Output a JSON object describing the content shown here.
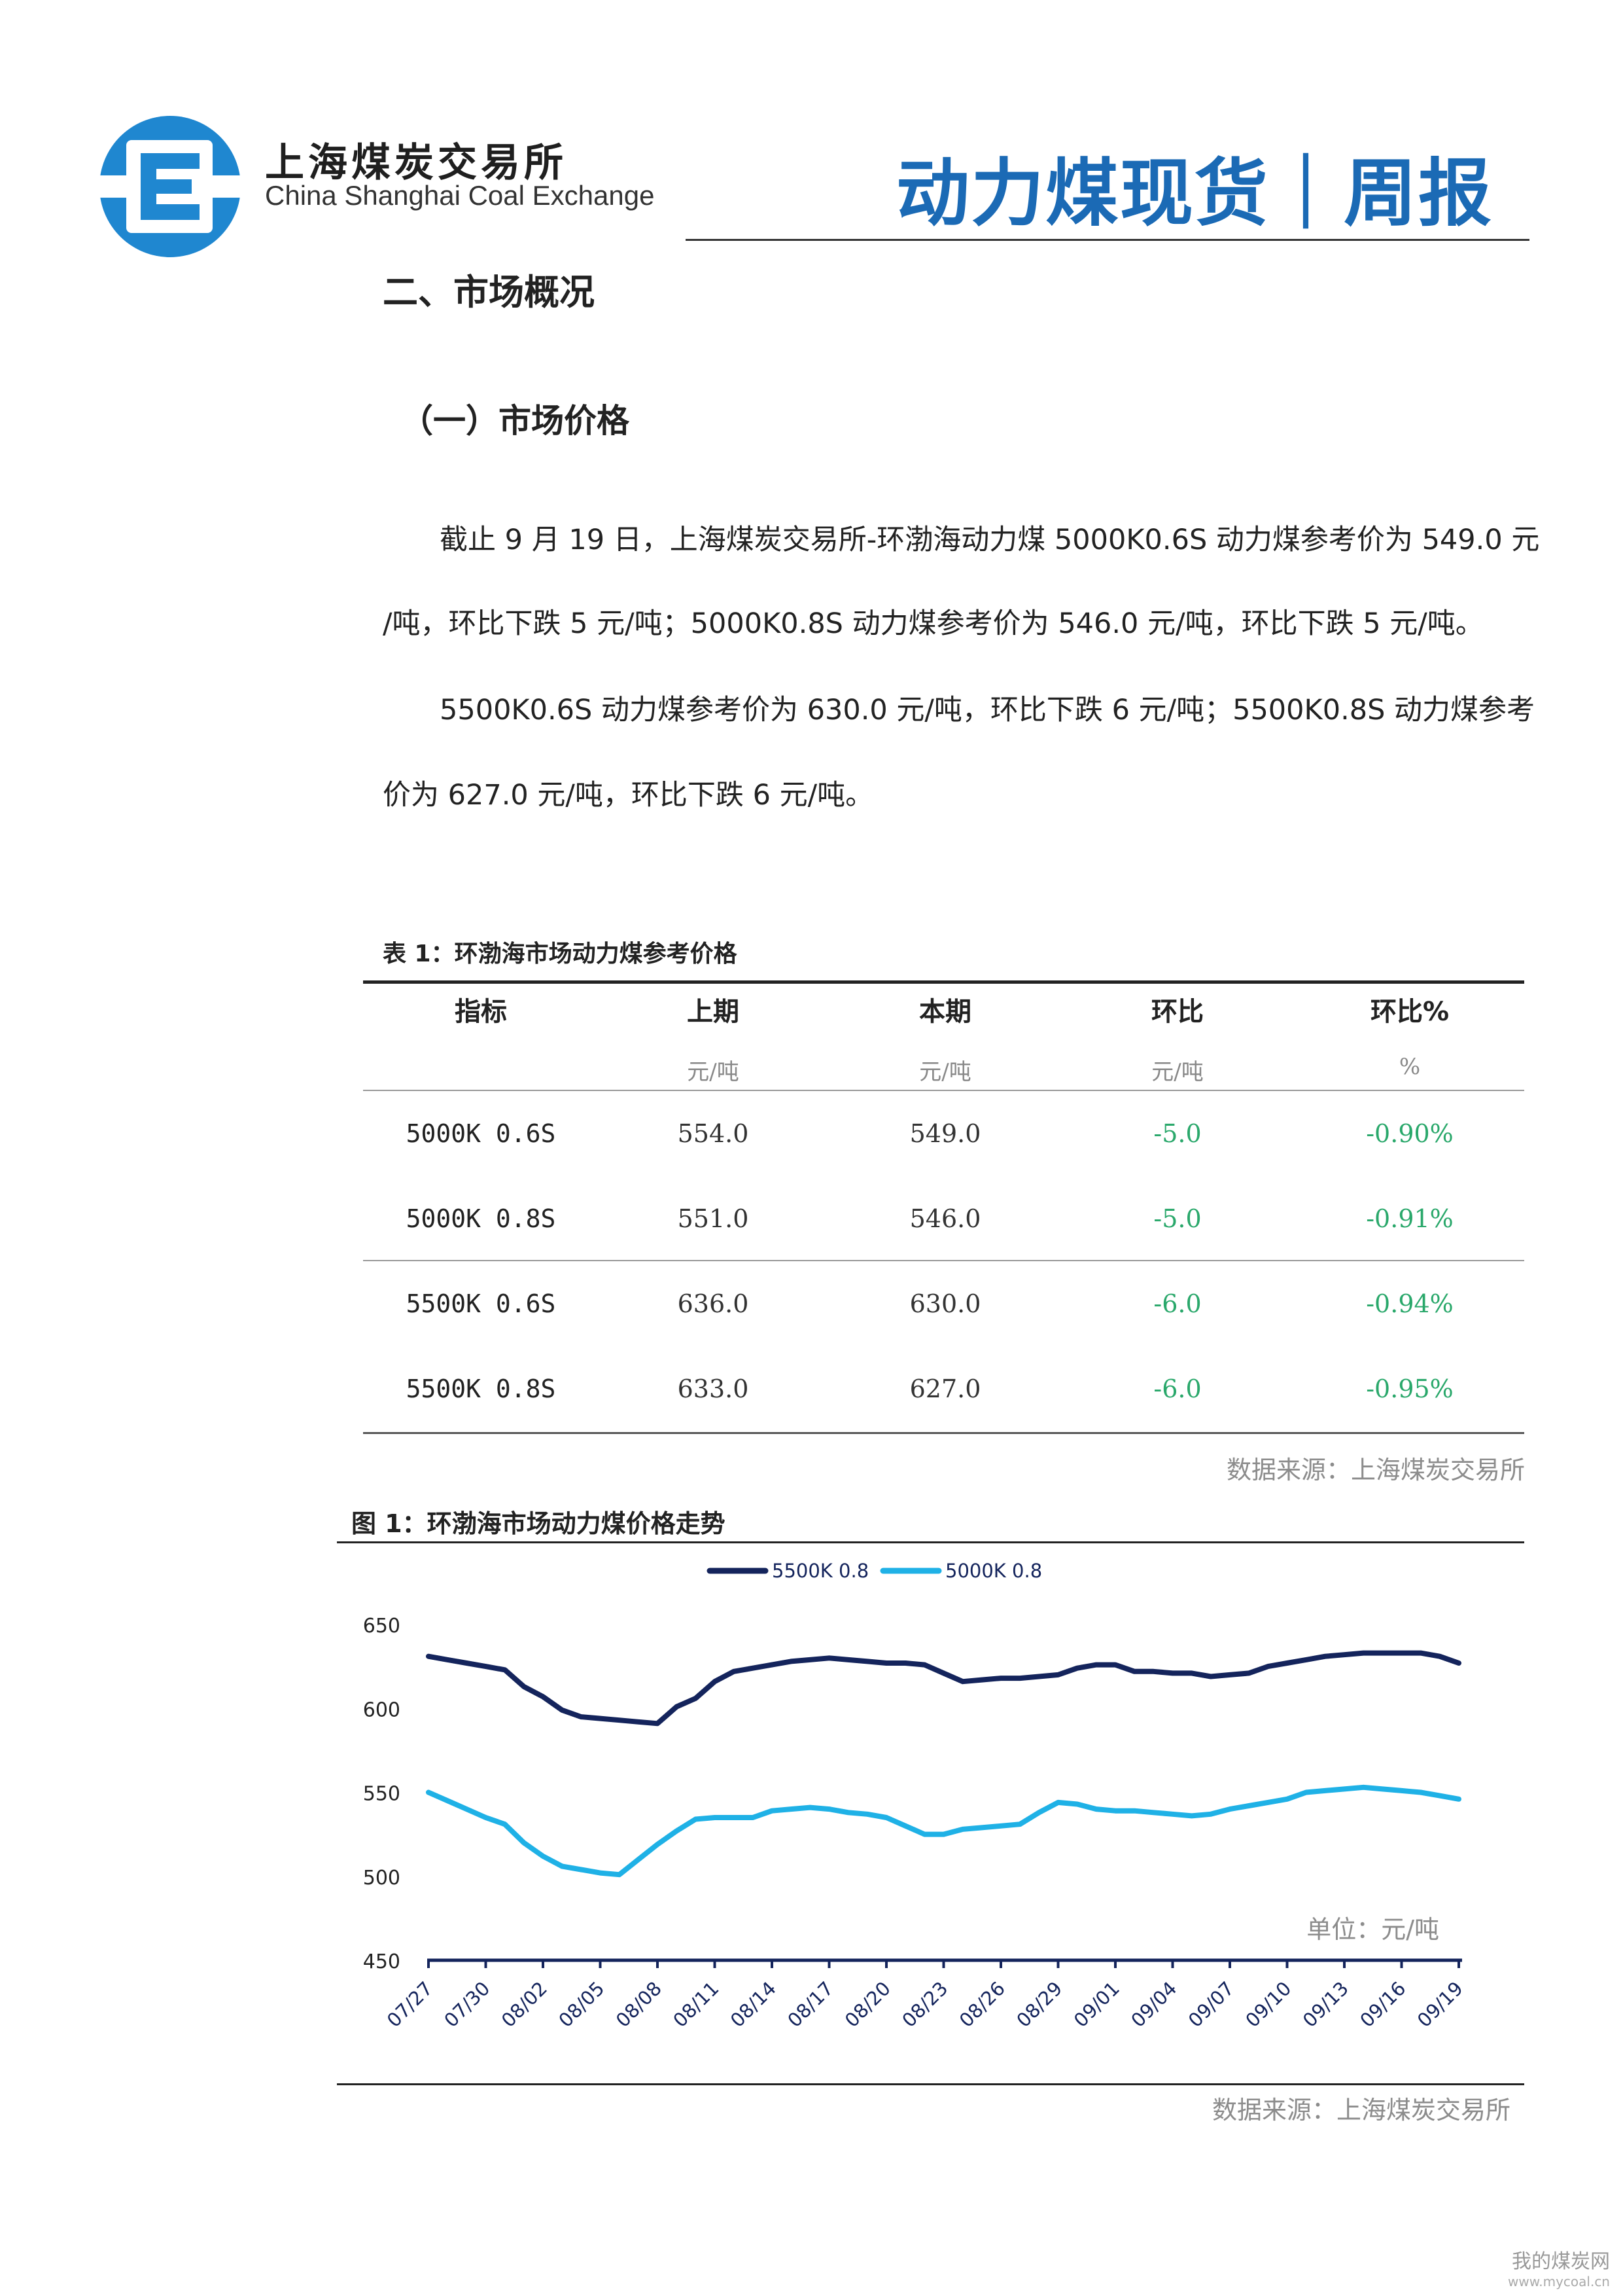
{
  "header": {
    "org_name_cn": "上海煤炭交易所",
    "org_name_en": "China Shanghai Coal Exchange",
    "report_title": "动力煤现货｜周报"
  },
  "section": {
    "heading": "二、市场概况",
    "subheading": "（一）市场价格"
  },
  "paragraphs": {
    "p1_line1": "截止 9 月 19 日，上海煤炭交易所-环渤海动力煤 5000K0.6S 动力煤参考价为 549.0 元",
    "p1_line2": "/吨，环比下跌 5 元/吨；5000K0.8S 动力煤参考价为 546.0 元/吨，环比下跌 5 元/吨。",
    "p2_line1": "5500K0.6S 动力煤参考价为 630.0 元/吨，环比下跌 6 元/吨；5500K0.8S 动力煤参考",
    "p2_line2": "价为 627.0 元/吨，环比下跌 6 元/吨。"
  },
  "table": {
    "caption": "表 1：环渤海市场动力煤参考价格",
    "headers": [
      "指标",
      "上期",
      "本期",
      "环比",
      "环比%"
    ],
    "units": [
      "",
      "元/吨",
      "元/吨",
      "元/吨",
      "%"
    ],
    "rows": [
      [
        "5000K 0.6S",
        "554.0",
        "549.0",
        "-5.0",
        "-0.90%"
      ],
      [
        "5000K 0.8S",
        "551.0",
        "546.0",
        "-5.0",
        "-0.91%"
      ],
      [
        "5500K 0.6S",
        "636.0",
        "630.0",
        "-6.0",
        "-0.94%"
      ],
      [
        "5500K 0.8S",
        "633.0",
        "627.0",
        "-6.0",
        "-0.95%"
      ]
    ],
    "source": "数据来源：上海煤炭交易所"
  },
  "figure": {
    "caption": "图 1：环渤海市场动力煤价格走势",
    "unit_note": "单位：元/吨",
    "source": "数据来源：上海煤炭交易所"
  },
  "colors": {
    "title_blue": "#1b6ab5",
    "series_dark": "#14245c",
    "series_light": "#1fb1e6",
    "negative_green": "#2aa86b"
  },
  "watermark": {
    "text": "我的煤炭网",
    "url": "www.mycoal.cn"
  },
  "chart_data": {
    "type": "line",
    "title": "",
    "xlabel": "",
    "ylabel": "",
    "ylim": [
      450,
      650
    ],
    "yticks": [
      450,
      500,
      550,
      600,
      650
    ],
    "x_tick_labels": [
      "07/27",
      "07/30",
      "08/02",
      "08/05",
      "08/08",
      "08/11",
      "08/14",
      "08/17",
      "08/20",
      "08/23",
      "08/26",
      "08/29",
      "09/01",
      "09/04",
      "09/07",
      "09/10",
      "09/13",
      "09/16",
      "09/19"
    ],
    "x": [
      "07/27",
      "07/28",
      "07/29",
      "07/30",
      "07/31",
      "08/01",
      "08/02",
      "08/03",
      "08/04",
      "08/05",
      "08/06",
      "08/07",
      "08/08",
      "08/09",
      "08/10",
      "08/11",
      "08/12",
      "08/13",
      "08/14",
      "08/15",
      "08/16",
      "08/17",
      "08/18",
      "08/19",
      "08/20",
      "08/21",
      "08/22",
      "08/23",
      "08/24",
      "08/25",
      "08/26",
      "08/27",
      "08/28",
      "08/29",
      "08/30",
      "08/31",
      "09/01",
      "09/02",
      "09/03",
      "09/04",
      "09/05",
      "09/06",
      "09/07",
      "09/08",
      "09/09",
      "09/10",
      "09/11",
      "09/12",
      "09/13",
      "09/14",
      "09/15",
      "09/16",
      "09/17",
      "09/18",
      "09/19"
    ],
    "legend_position": "top-center",
    "grid": false,
    "series": [
      {
        "name": "5500K 0.8",
        "color": "#14245c",
        "values": [
          631,
          629,
          627,
          625,
          623,
          613,
          607,
          599,
          595,
          594,
          593,
          592,
          591,
          601,
          606,
          616,
          622,
          624,
          626,
          628,
          629,
          630,
          629,
          628,
          627,
          627,
          626,
          621,
          616,
          617,
          618,
          618,
          619,
          620,
          624,
          626,
          626,
          622,
          622,
          621,
          621,
          619,
          620,
          621,
          625,
          627,
          629,
          631,
          632,
          633,
          633,
          633,
          633,
          631,
          627
        ]
      },
      {
        "name": "5000K 0.8",
        "color": "#1fb1e6",
        "values": [
          550,
          545,
          540,
          535,
          531,
          520,
          512,
          506,
          504,
          502,
          501,
          510,
          519,
          527,
          534,
          535,
          535,
          535,
          539,
          540,
          541,
          540,
          538,
          537,
          535,
          530,
          525,
          525,
          528,
          529,
          530,
          531,
          538,
          544,
          543,
          540,
          539,
          539,
          538,
          537,
          536,
          537,
          540,
          542,
          544,
          546,
          550,
          551,
          552,
          553,
          552,
          551,
          550,
          548,
          546
        ]
      }
    ]
  }
}
